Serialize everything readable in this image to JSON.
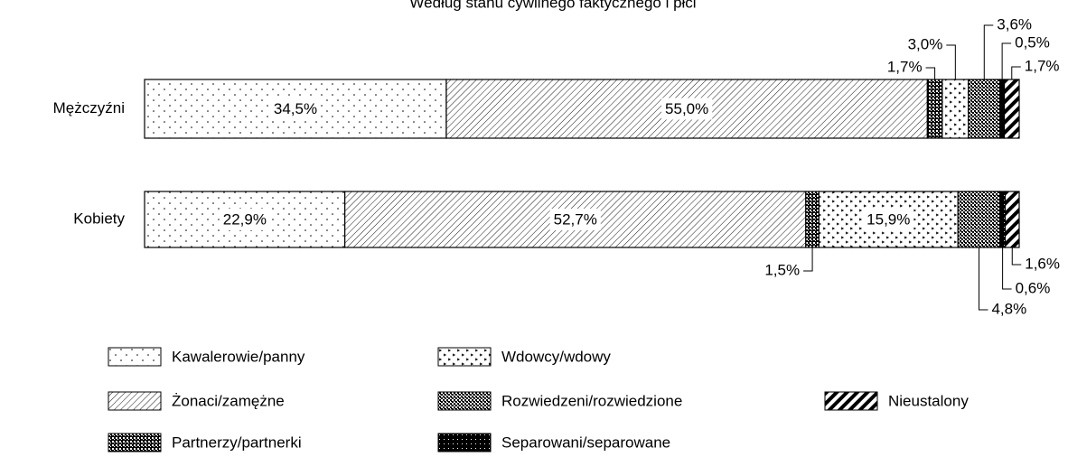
{
  "chart_data": {
    "type": "stacked_barh",
    "title": "Według stanu cywilnego faktycznego i płci",
    "categories": [
      "Mężczyźni",
      "Kobiety"
    ],
    "xlim": [
      0,
      100
    ],
    "series": [
      {
        "name": "Kawalerowie/panny",
        "values": [
          34.5,
          22.9
        ],
        "value_labels": [
          "34,5%",
          "22,9%"
        ]
      },
      {
        "name": "Żonaci/zamężne",
        "values": [
          55.0,
          52.7
        ],
        "value_labels": [
          "55,0%",
          "52,7%"
        ]
      },
      {
        "name": "Partnerzy/partnerki",
        "values": [
          1.7,
          1.5
        ],
        "value_labels": [
          "1,7%",
          "1,5%"
        ]
      },
      {
        "name": "Wdowcy/wdowy",
        "values": [
          3.0,
          15.9
        ],
        "value_labels": [
          "3,0%",
          "15,9%"
        ]
      },
      {
        "name": "Rozwiedzeni/rozwiedzione",
        "values": [
          3.6,
          4.8
        ],
        "value_labels": [
          "3,6%",
          "4,8%"
        ]
      },
      {
        "name": "Separowani/separowane",
        "values": [
          0.5,
          0.6
        ],
        "value_labels": [
          "0,5%",
          "0,6%"
        ]
      },
      {
        "name": "Nieustalony",
        "values": [
          1.7,
          1.6
        ],
        "value_labels": [
          "1,7%",
          "1,6%"
        ]
      }
    ]
  }
}
